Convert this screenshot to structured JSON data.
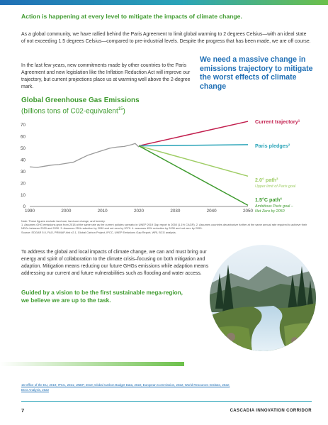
{
  "heading": "Action is happening at every level to mitigate the impacts of climate change.",
  "intro": "As a global community, we have rallied behind the Paris Agreement to limit global warming to 2 degrees Celsius—with an ideal state of not exceeding 1.5 degrees Celsius—compared to pre-industrial levels. Despite the progress that has been made, we are off course.",
  "commitments": "In the last few years, new commitments made by other countries to the Paris Agreement and new legislation like the Inflation Reduction Act will improve our trajectory, but current projections place us at warming well above the 2-degree mark.",
  "callout": "We need a massive change in emissions trajectory to mitigate the worst effects of climate change",
  "chart_title": {
    "line1": "Global Greenhouse Gas Emissions",
    "line2": "(billions tons of C02-equivalent",
    "sup": "15",
    "close": ")"
  },
  "chart_data": {
    "type": "line",
    "title": "Global Greenhouse Gas Emissions (billions tons of C02-equivalent)",
    "xlabel": "",
    "ylabel": "",
    "xlim": [
      1990,
      2050
    ],
    "ylim": [
      0,
      70
    ],
    "x_ticks": [
      1990,
      2000,
      2010,
      2020,
      2030,
      2040,
      2050
    ],
    "y_ticks": [
      0,
      10,
      20,
      30,
      40,
      50,
      60,
      70
    ],
    "grid": false,
    "history": {
      "color": "#9a9a9a",
      "x": [
        1990,
        1992,
        1994,
        1996,
        1998,
        2000,
        2002,
        2004,
        2006,
        2008,
        2010,
        2012,
        2014,
        2016,
        2018,
        2019,
        2020
      ],
      "y": [
        34,
        33.5,
        34.5,
        35.5,
        36,
        37,
        38,
        41,
        44,
        46,
        48,
        50,
        51,
        51.5,
        53,
        54,
        51
      ]
    },
    "series": [
      {
        "name": "Current trajectory",
        "sup": "1",
        "color": "#c21f4e",
        "x": [
          2020,
          2050
        ],
        "y": [
          52,
          73
        ]
      },
      {
        "name": "Paris pledges",
        "sup": "2",
        "color": "#2aa4b8",
        "x": [
          2020,
          2050
        ],
        "y": [
          52,
          53
        ]
      },
      {
        "name": "2.0° path",
        "sup": "3",
        "sub": "Upper limit of Paris goal",
        "color": "#9fcd65",
        "x": [
          2020,
          2050
        ],
        "y": [
          52,
          26
        ]
      },
      {
        "name": "1.5°C path",
        "sup": "4",
        "sub": "Ambitious Paris goal – Net Zero by 2050",
        "color": "#3f9b2f",
        "x": [
          2020,
          2050
        ],
        "y": [
          52,
          1
        ]
      }
    ]
  },
  "notes": "Note: These figures exclude land use, land-use change, and forestry.\n1. Assumes GHG emissions grow from 2018 at the same rate as the current policies scenario in UNEP 2019 Gap report to 2050 (1.1% CAGR).  2. Assumes countries decarbonize further at the same annual rate required to achieve their NDCs between 2020 and 2030.  3. Assumes 25% reduction by 2030 and net zero by 2070.  4. assumes 45% reduction by 2030 and net zero by 2050.\nSource: EDGAR 5.0, FAO, PRIMAP-hist v2.1, Global Carbon Project, IPCC, UNEP Emissions Gap Report, WRI, BCG analysis.",
  "mitigation": "To address the global and local impacts of climate change, we can and must bring our energy and spirit of collaboration to the climate crisis–focusing on both mitigation and adaption. Mitigation means reducing our future GHGs emissions while adaption means addressing our current and future vulnerabilities such as flooding and water access.",
  "tagline": "Guided by a vision to be the first sustainable mega-region, we believe we are up to the task.",
  "footnote": "15 Office of the EU, 2019; IPCC, 2021; UNEP, 2019; Global Carbon Budget Data, 2022; European Commission, 2022; World Resources Institute, 2022; BCG Analysis, 2022",
  "footer": {
    "page": "7",
    "brand": "CASCADIA INNOVATION CORRIDOR"
  }
}
